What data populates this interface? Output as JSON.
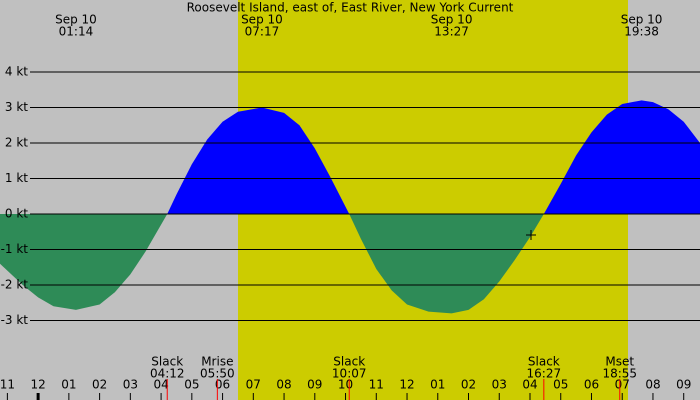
{
  "chart_data": {
    "type": "area",
    "title": "Roosevelt Island, east of, East River, New York Current",
    "x": [
      -1.24,
      -0.5,
      0,
      0.5,
      1.23,
      2.0,
      2.5,
      3.0,
      3.5,
      4.2,
      4.5,
      5.0,
      5.5,
      6.0,
      6.5,
      7.28,
      8.0,
      8.5,
      9.0,
      9.5,
      10.12,
      10.5,
      11.0,
      11.5,
      12.0,
      12.7,
      13.45,
      14.0,
      14.5,
      15.0,
      15.5,
      16.0,
      16.45,
      17.0,
      17.5,
      18.0,
      18.5,
      19.0,
      19.63,
      20.0,
      20.5,
      21.0,
      21.53
    ],
    "values": [
      -1.4,
      -2.0,
      -2.35,
      -2.6,
      -2.7,
      -2.55,
      -2.2,
      -1.7,
      -1.05,
      0,
      0.55,
      1.4,
      2.1,
      2.6,
      2.88,
      3.0,
      2.85,
      2.5,
      1.85,
      1.05,
      0,
      -0.7,
      -1.55,
      -2.15,
      -2.55,
      -2.75,
      -2.8,
      -2.7,
      -2.4,
      -1.9,
      -1.3,
      -0.65,
      0,
      0.85,
      1.65,
      2.3,
      2.8,
      3.1,
      3.2,
      3.15,
      2.95,
      2.6,
      2.0
    ],
    "flood_color": "#0000ff",
    "ebb_color": "#2e8b57",
    "xlim": [
      -1.24,
      21.53
    ],
    "ylim": [
      -3,
      4
    ],
    "yticks": [
      {
        "value": 4,
        "label": "4 kt"
      },
      {
        "value": 3,
        "label": "3 kt"
      },
      {
        "value": 2,
        "label": "2 kt"
      },
      {
        "value": 1,
        "label": "1 kt"
      },
      {
        "value": 0,
        "label": "0 kt"
      },
      {
        "value": -1,
        "label": "-1 kt"
      },
      {
        "value": -2,
        "label": "-2 kt"
      },
      {
        "value": -3,
        "label": "-3 kt"
      }
    ],
    "xticks": [
      {
        "value": -1,
        "label": "11"
      },
      {
        "value": 0,
        "label": "12"
      },
      {
        "value": 1,
        "label": "01"
      },
      {
        "value": 2,
        "label": "02"
      },
      {
        "value": 3,
        "label": "03"
      },
      {
        "value": 4,
        "label": "04"
      },
      {
        "value": 5,
        "label": "05"
      },
      {
        "value": 6,
        "label": "06"
      },
      {
        "value": 7,
        "label": "07"
      },
      {
        "value": 8,
        "label": "08"
      },
      {
        "value": 9,
        "label": "09"
      },
      {
        "value": 10,
        "label": "10"
      },
      {
        "value": 11,
        "label": "11"
      },
      {
        "value": 12,
        "label": "12"
      },
      {
        "value": 13,
        "label": "01"
      },
      {
        "value": 14,
        "label": "02"
      },
      {
        "value": 15,
        "label": "03"
      },
      {
        "value": 16,
        "label": "04"
      },
      {
        "value": 17,
        "label": "05"
      },
      {
        "value": 18,
        "label": "06"
      },
      {
        "value": 19,
        "label": "07"
      },
      {
        "value": 20,
        "label": "08"
      },
      {
        "value": 21,
        "label": "09"
      }
    ],
    "grid": true,
    "peaks": [
      {
        "date": "Sep 10",
        "time": "01:14",
        "at": 1.23
      },
      {
        "date": "Sep 10",
        "time": "07:17",
        "at": 7.28
      },
      {
        "date": "Sep 10",
        "time": "13:27",
        "at": 13.45
      },
      {
        "date": "Sep 10",
        "time": "19:38",
        "at": 19.63
      }
    ],
    "events": [
      {
        "name": "Slack",
        "time": "04:12",
        "at": 4.2
      },
      {
        "name": "Mrise",
        "time": "05:50",
        "at": 5.83
      },
      {
        "name": "Slack",
        "time": "10:07",
        "at": 10.12
      },
      {
        "name": "Slack",
        "time": "16:27",
        "at": 16.45
      },
      {
        "name": "Mset",
        "time": "18:55",
        "at": 18.92
      }
    ]
  }
}
